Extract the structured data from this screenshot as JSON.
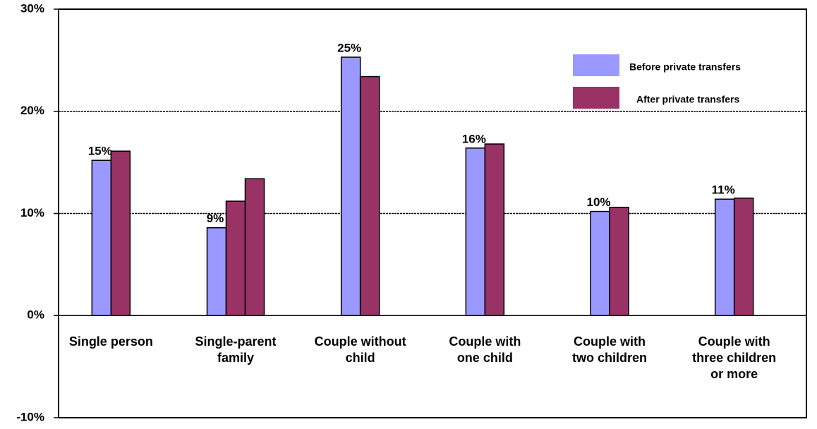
{
  "chart_data": {
    "type": "bar",
    "categories": [
      "Single person",
      "Single-parent\nfamily",
      "Couple without\nchild",
      "Couple with\none child",
      "Couple with\ntwo children",
      "Couple with\nthree children\nor more"
    ],
    "series": [
      {
        "name": "Before private transfers",
        "color": "#9999ff",
        "values": [
          15.2,
          8.6,
          25.3,
          16.4,
          10.2,
          11.4
        ],
        "value_labels": [
          "15%",
          "9%",
          "25%",
          "16%",
          "10%",
          "11%"
        ]
      },
      {
        "name": "After private transfers",
        "color": "#993366",
        "values": [
          16.1,
          11.2,
          23.4,
          16.8,
          10.6,
          11.5
        ]
      },
      {
        "color": "#993366",
        "values": [
          null,
          13.4,
          null,
          null,
          null,
          null
        ]
      }
    ],
    "ylim": [
      -10,
      30
    ],
    "yticks": [
      {
        "value": -10,
        "label": "-10%"
      },
      {
        "value": 0,
        "label": "0%"
      },
      {
        "value": 10,
        "label": "10%"
      },
      {
        "value": 20,
        "label": "20%"
      },
      {
        "value": 30,
        "label": "30%"
      }
    ],
    "grid": true,
    "legend": "top-right"
  }
}
